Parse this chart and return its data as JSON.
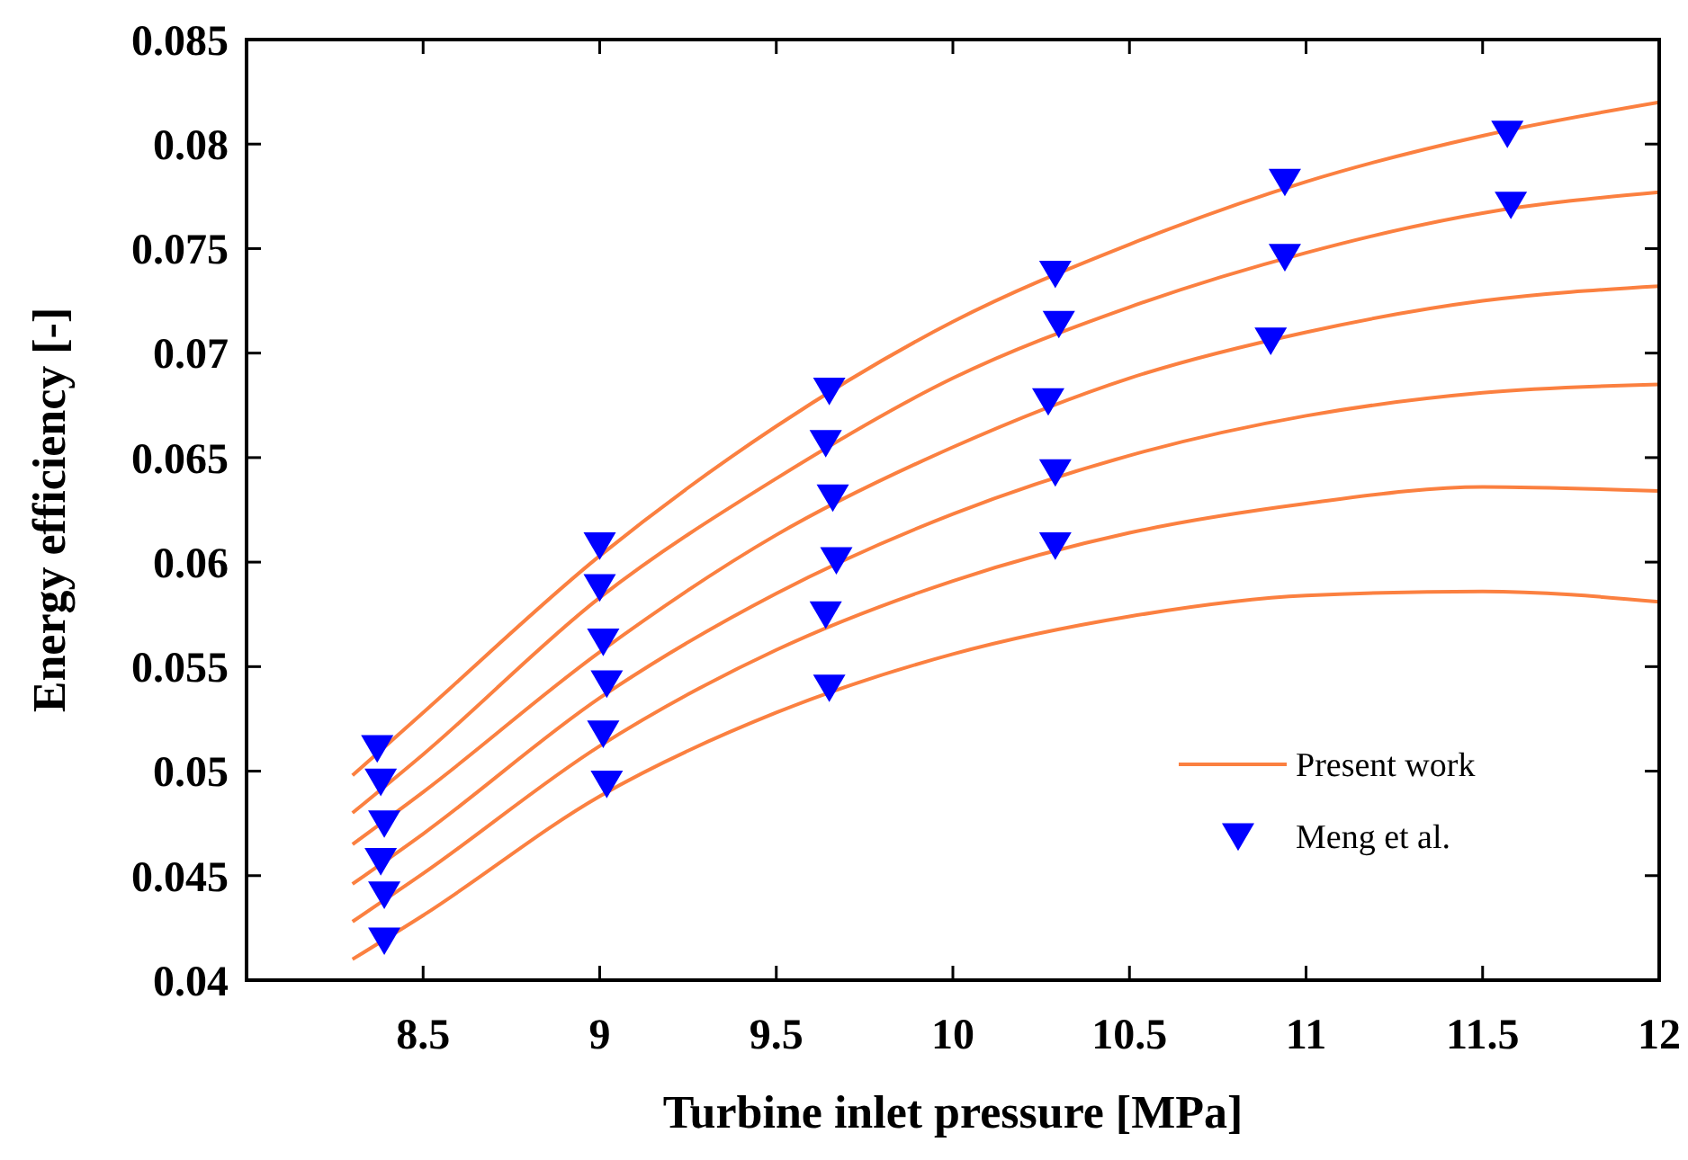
{
  "chart_data": {
    "type": "line",
    "xlabel": "Turbine inlet pressure [MPa]",
    "ylabel": "Energy efficiency [-]",
    "xlim": [
      8,
      12
    ],
    "xticks": [
      8.5,
      9,
      9.5,
      10,
      10.5,
      11,
      11.5,
      12
    ],
    "ylim": [
      0.04,
      0.085
    ],
    "yticks": [
      0.04,
      0.045,
      0.05,
      0.055,
      0.06,
      0.065,
      0.07,
      0.075,
      0.08,
      0.085
    ],
    "legend": "bottom right",
    "grid": false,
    "series": [
      {
        "name": "Present work",
        "color": "#fb8040",
        "x": [
          8.3,
          8.5,
          9,
          9.5,
          10,
          10.5,
          11,
          11.5,
          12
        ],
        "values": [
          0.0498,
          0.0528,
          0.0603,
          0.0665,
          0.0715,
          0.0752,
          0.0782,
          0.0804,
          0.082
        ]
      },
      {
        "color": "#fb8040",
        "x": [
          8.3,
          8.5,
          9,
          9.5,
          10,
          10.5,
          11,
          11.5,
          12
        ],
        "values": [
          0.048,
          0.0508,
          0.0583,
          0.064,
          0.0688,
          0.0722,
          0.0748,
          0.0767,
          0.0777
        ]
      },
      {
        "color": "#fb8040",
        "x": [
          8.3,
          8.5,
          9,
          9.5,
          10,
          10.5,
          11,
          11.5,
          12
        ],
        "values": [
          0.0465,
          0.049,
          0.0557,
          0.0613,
          0.0655,
          0.0688,
          0.071,
          0.0725,
          0.0732
        ]
      },
      {
        "color": "#fb8040",
        "x": [
          8.3,
          8.5,
          9,
          9.5,
          10,
          10.5,
          11,
          11.5,
          12
        ],
        "values": [
          0.0446,
          0.047,
          0.0535,
          0.0585,
          0.0623,
          0.0651,
          0.067,
          0.0681,
          0.0685
        ]
      },
      {
        "color": "#fb8040",
        "x": [
          8.3,
          8.5,
          9,
          9.5,
          10,
          10.5,
          11,
          11.5,
          12
        ],
        "values": [
          0.0428,
          0.0451,
          0.0512,
          0.0558,
          0.0591,
          0.0614,
          0.0628,
          0.0636,
          0.0634
        ]
      },
      {
        "color": "#fb8040",
        "x": [
          8.3,
          8.5,
          9,
          9.5,
          10,
          10.5,
          11,
          11.5,
          12
        ],
        "values": [
          0.041,
          0.0431,
          0.0488,
          0.0528,
          0.0556,
          0.0574,
          0.0584,
          0.0586,
          0.0581
        ]
      },
      {
        "name": "Meng et al.",
        "type": "scatter",
        "marker": "triangle",
        "color": "#0000ff",
        "x": [
          8.37,
          9.0,
          9.65,
          10.29,
          10.94,
          11.57,
          8.38,
          9.0,
          9.64,
          10.3,
          10.94,
          11.58,
          8.39,
          9.01,
          9.66,
          10.27,
          10.9,
          8.38,
          9.02,
          9.67,
          10.29,
          8.39,
          9.01,
          9.64,
          10.29,
          8.39,
          9.02,
          9.65
        ],
        "values": [
          0.0511,
          0.0608,
          0.0682,
          0.0738,
          0.0782,
          0.0805,
          0.0495,
          0.0588,
          0.0657,
          0.0714,
          0.0746,
          0.0771,
          0.0475,
          0.0562,
          0.0631,
          0.0677,
          0.0706,
          0.0457,
          0.0542,
          0.0601,
          0.0643,
          0.0441,
          0.0518,
          0.0575,
          0.0608,
          0.0419,
          0.0494,
          0.054
        ]
      }
    ]
  }
}
